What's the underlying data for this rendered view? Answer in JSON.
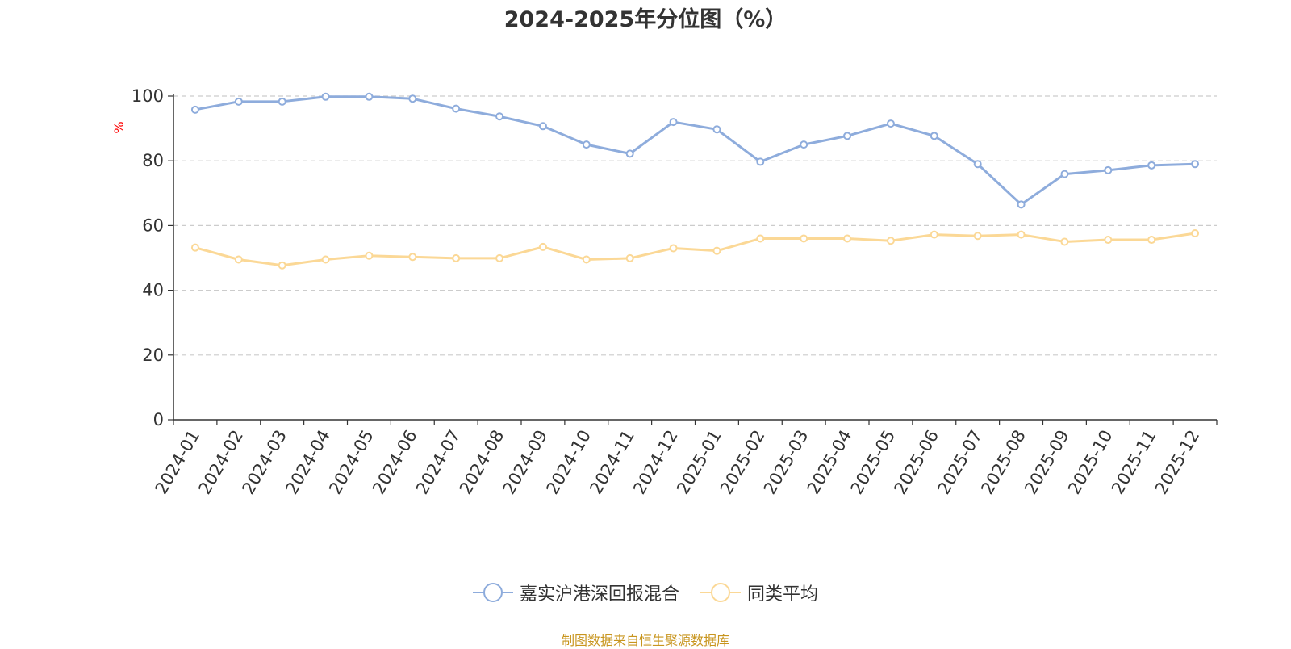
{
  "chart_data": {
    "type": "line",
    "title": "2024-2025年分位图（%）",
    "ylabel": "%",
    "ylim": [
      0,
      100
    ],
    "yticks": [
      0,
      20,
      40,
      60,
      80,
      100
    ],
    "grid": true,
    "legend_position": "bottom",
    "categories": [
      "2024-01",
      "2024-02",
      "2024-03",
      "2024-04",
      "2024-05",
      "2024-06",
      "2024-07",
      "2024-08",
      "2024-09",
      "2024-10",
      "2024-11",
      "2024-12",
      "2025-01",
      "2025-02",
      "2025-03",
      "2025-04",
      "2025-05",
      "2025-06",
      "2025-07",
      "2025-08",
      "2025-09",
      "2025-10",
      "2025-11",
      "2025-12"
    ],
    "series": [
      {
        "name": "嘉实沪港深回报混合",
        "color": "#8eacdc",
        "values": [
          95.8,
          98.3,
          98.3,
          99.8,
          99.8,
          99.2,
          96.1,
          93.7,
          90.7,
          85.0,
          82.2,
          92.0,
          89.7,
          79.7,
          85.0,
          87.7,
          91.5,
          87.7,
          79.0,
          66.5,
          75.9,
          77.1,
          78.6,
          79.0
        ]
      },
      {
        "name": "同类平均",
        "color": "#fbd896",
        "values": [
          53.2,
          49.5,
          47.7,
          49.5,
          50.7,
          50.3,
          49.9,
          49.9,
          53.4,
          49.5,
          49.9,
          53.0,
          52.2,
          56.0,
          56.0,
          56.0,
          55.3,
          57.2,
          56.8,
          57.2,
          55.0,
          55.6,
          55.6,
          57.6
        ]
      }
    ]
  },
  "source_text": "制图数据来自恒生聚源数据库",
  "source_color": "#c8951e",
  "ylabel_color": "#ff0000"
}
